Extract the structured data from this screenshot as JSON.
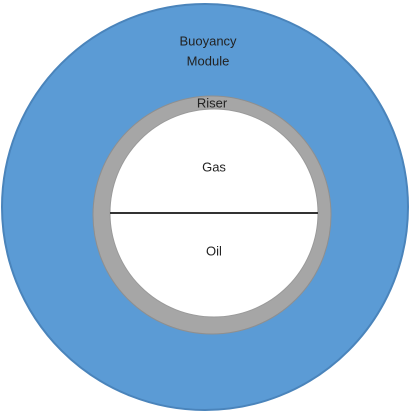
{
  "buoyancy_module": {
    "label_lines": [
      "Buoyancy",
      "Module"
    ]
  },
  "riser": {
    "label": "Riser"
  },
  "gas": {
    "label": "Gas"
  },
  "oil": {
    "label": "Oil"
  }
}
